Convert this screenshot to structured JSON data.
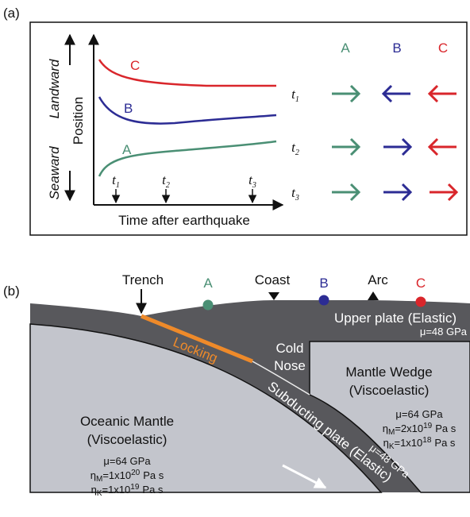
{
  "panel_a": {
    "label": "(a)",
    "y_axis": {
      "title": "Position",
      "upper": "Landward",
      "lower": "Seaward"
    },
    "x_axis": {
      "title": "Time after earthquake"
    },
    "stations": [
      {
        "name": "A",
        "color": "#4a8f74"
      },
      {
        "name": "B",
        "color": "#2c2c94"
      },
      {
        "name": "C",
        "color": "#d9262b"
      }
    ],
    "times": [
      {
        "symbol": "t",
        "sub": "1"
      },
      {
        "symbol": "t",
        "sub": "2"
      },
      {
        "symbol": "t",
        "sub": "3"
      }
    ],
    "arrows": [
      [
        "right",
        "left",
        "left"
      ],
      [
        "right",
        "right",
        "left"
      ],
      [
        "right",
        "right",
        "right"
      ]
    ]
  },
  "panel_b": {
    "label": "(b)",
    "surface": {
      "trench": "Trench",
      "coast": "Coast",
      "arc": "Arc"
    },
    "upper_plate": {
      "name": "Upper plate (Elastic)",
      "mu": "μ=48 GPa"
    },
    "locking": "Locking",
    "cold_nose": [
      "Cold",
      "Nose"
    ],
    "mantle_wedge": {
      "name": [
        "Mantle Wedge",
        "(Viscoelastic)"
      ],
      "mu": "μ=64 GPa",
      "eta_m": {
        "symbol": "η",
        "sub": "M",
        "base": "=2x10",
        "exp": "19",
        "unit": "Pa s"
      },
      "eta_k": {
        "symbol": "η",
        "sub": "K",
        "base": "=1x10",
        "exp": "18",
        "unit": "Pa s"
      }
    },
    "oceanic_mantle": {
      "name": [
        "Oceanic Mantle",
        "(Viscoelastic)"
      ],
      "mu": "μ=64 GPa",
      "eta_m": {
        "symbol": "η",
        "sub": "M",
        "base": "=1x10",
        "exp": "20",
        "unit": "Pa s"
      },
      "eta_k": {
        "symbol": "η",
        "sub": "K",
        "base": "=1x10",
        "exp": "19",
        "unit": "Pa s"
      }
    },
    "slab": {
      "name": "Subducting plate (Elastic)",
      "mu": "μ=48 GPa"
    }
  }
}
